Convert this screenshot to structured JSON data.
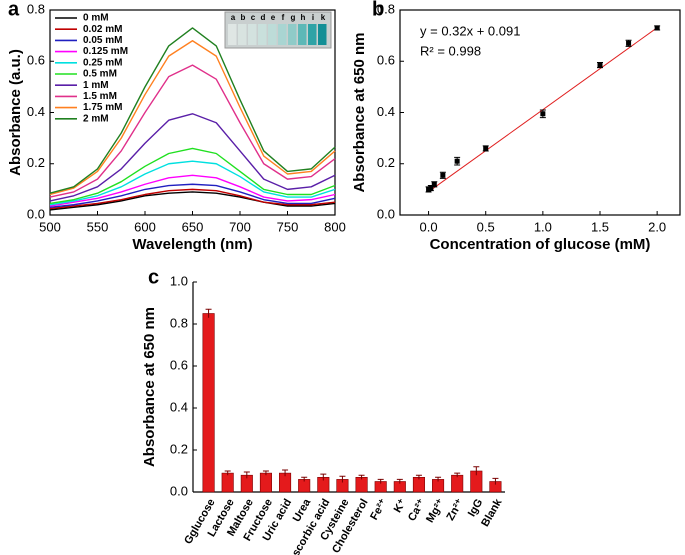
{
  "chart_data": [
    {
      "type": "line",
      "panel_label": "a",
      "xlabel": "Wavelength (nm)",
      "ylabel": "Absorbance (a.u.)",
      "x": [
        500,
        525,
        550,
        575,
        600,
        625,
        650,
        675,
        700,
        725,
        750,
        775,
        800
      ],
      "xlim": [
        500,
        800
      ],
      "xticks": [
        500,
        550,
        600,
        650,
        700,
        750,
        800
      ],
      "ylim": [
        0,
        0.8
      ],
      "yticks": [
        {
          "value": 0,
          "label": "0.0"
        },
        0.2,
        0.4,
        0.6,
        0.8
      ],
      "legend": "top-left",
      "inset_labels": [
        "a",
        "b",
        "c",
        "d",
        "e",
        "f",
        "g",
        "h",
        "i",
        "k"
      ],
      "series": [
        {
          "name": "0 mM",
          "color": "#000000",
          "values": [
            0.02,
            0.03,
            0.04,
            0.055,
            0.075,
            0.085,
            0.09,
            0.085,
            0.07,
            0.05,
            0.035,
            0.035,
            0.045
          ]
        },
        {
          "name": "0.02 mM",
          "color": "#c00000",
          "values": [
            0.025,
            0.035,
            0.045,
            0.06,
            0.08,
            0.095,
            0.1,
            0.095,
            0.075,
            0.05,
            0.04,
            0.04,
            0.05
          ]
        },
        {
          "name": "0.05 mM",
          "color": "#2020c0",
          "values": [
            0.03,
            0.04,
            0.055,
            0.075,
            0.1,
            0.115,
            0.12,
            0.115,
            0.09,
            0.06,
            0.045,
            0.045,
            0.065
          ]
        },
        {
          "name": "0.125 mM",
          "color": "#ff00ff",
          "values": [
            0.035,
            0.05,
            0.065,
            0.09,
            0.12,
            0.145,
            0.155,
            0.145,
            0.11,
            0.07,
            0.055,
            0.06,
            0.08
          ]
        },
        {
          "name": "0.25 mM",
          "color": "#00e0e0",
          "values": [
            0.04,
            0.055,
            0.075,
            0.11,
            0.16,
            0.2,
            0.21,
            0.2,
            0.15,
            0.09,
            0.07,
            0.07,
            0.1
          ]
        },
        {
          "name": "0.5 mM",
          "color": "#20e020",
          "values": [
            0.045,
            0.06,
            0.085,
            0.13,
            0.19,
            0.24,
            0.26,
            0.24,
            0.17,
            0.1,
            0.08,
            0.08,
            0.115
          ]
        },
        {
          "name": "1 mM",
          "color": "#5a1fa8",
          "values": [
            0.055,
            0.075,
            0.11,
            0.18,
            0.28,
            0.37,
            0.395,
            0.36,
            0.25,
            0.14,
            0.1,
            0.11,
            0.155
          ]
        },
        {
          "name": "1.5 mM",
          "color": "#e0308a",
          "values": [
            0.07,
            0.09,
            0.14,
            0.25,
            0.4,
            0.54,
            0.585,
            0.53,
            0.36,
            0.2,
            0.14,
            0.15,
            0.22
          ]
        },
        {
          "name": "1.75 mM",
          "color": "#ff8020",
          "values": [
            0.08,
            0.105,
            0.17,
            0.3,
            0.47,
            0.62,
            0.68,
            0.62,
            0.42,
            0.23,
            0.16,
            0.17,
            0.25
          ]
        },
        {
          "name": "2 mM",
          "color": "#208020",
          "values": [
            0.085,
            0.11,
            0.18,
            0.32,
            0.5,
            0.66,
            0.73,
            0.66,
            0.45,
            0.25,
            0.17,
            0.18,
            0.265
          ]
        }
      ]
    },
    {
      "type": "scatter",
      "panel_label": "b",
      "xlabel": "Concentration of glucose (mM)",
      "ylabel": "Absorbance at 650 nm",
      "annotations": [
        "y = 0.32x + 0.091",
        "R² = 0.998"
      ],
      "x": [
        0,
        0.02,
        0.05,
        0.125,
        0.25,
        0.5,
        1,
        1.5,
        1.75,
        2
      ],
      "values": [
        0.1,
        0.105,
        0.12,
        0.155,
        0.21,
        0.26,
        0.395,
        0.585,
        0.67,
        0.73
      ],
      "errors": [
        0.01,
        0.01,
        0.01,
        0.012,
        0.015,
        0.01,
        0.015,
        0.01,
        0.012,
        0.008
      ],
      "color": "#000000",
      "fit_line": {
        "x": [
          0,
          2
        ],
        "y": [
          0.091,
          0.731
        ],
        "color": "#e02020"
      },
      "xlim": [
        -0.25,
        2.2
      ],
      "xticks": [
        {
          "value": 0,
          "label": "0.0"
        },
        0.5,
        {
          "value": 1,
          "label": "1.0"
        },
        1.5,
        {
          "value": 2,
          "label": "2.0"
        }
      ],
      "ylim": [
        0,
        0.8
      ],
      "yticks": [
        {
          "value": 0,
          "label": "0.0"
        },
        0.2,
        0.4,
        0.6,
        0.8
      ]
    },
    {
      "type": "bar",
      "panel_label": "c",
      "ylabel": "Absorbance at 650 nm",
      "categories": [
        "Gglucose",
        "Lactose",
        "Maltose",
        "Fructose",
        "Uric acid",
        "Urea",
        "Ascorbic acid",
        "Cysteine",
        "Cholesterol",
        "Fe²⁺",
        "K⁺",
        "Ca²⁺",
        "Mg²⁺",
        "Zn²⁺",
        "IgG",
        "Blank"
      ],
      "values": [
        0.85,
        0.09,
        0.08,
        0.09,
        0.09,
        0.06,
        0.07,
        0.06,
        0.07,
        0.05,
        0.05,
        0.07,
        0.06,
        0.08,
        0.1,
        0.05
      ],
      "errors": [
        0.02,
        0.01,
        0.015,
        0.01,
        0.015,
        0.01,
        0.015,
        0.015,
        0.01,
        0.01,
        0.01,
        0.01,
        0.01,
        0.01,
        0.02,
        0.015
      ],
      "color": "#e41a1c",
      "ylim": [
        0,
        1
      ],
      "yticks": [
        {
          "value": 0,
          "label": "0.0"
        },
        0.2,
        0.4,
        0.6,
        0.8,
        {
          "value": 1,
          "label": "1.0"
        }
      ]
    }
  ]
}
